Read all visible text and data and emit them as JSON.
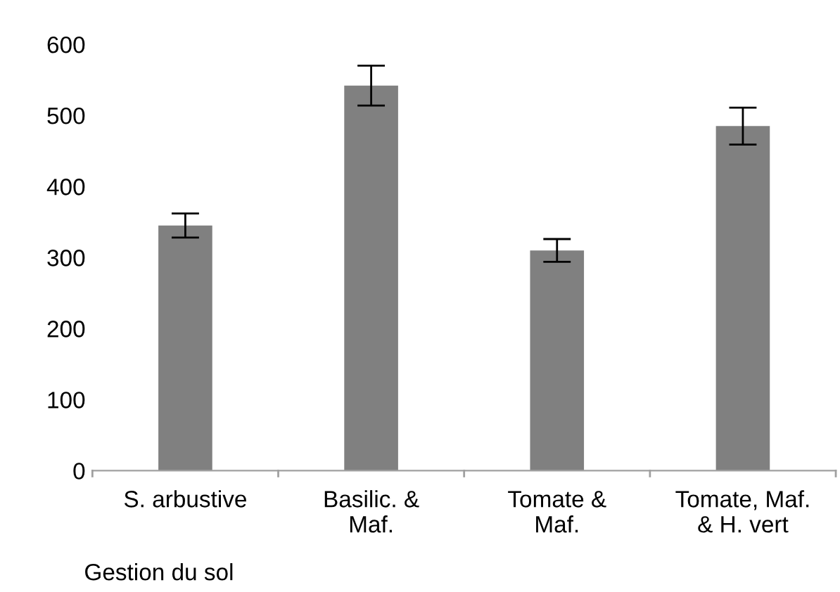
{
  "chart_data": {
    "type": "bar",
    "categories": [
      "S. arbustive",
      "Basilic. &\nMaf.",
      "Tomate &\nMaf.",
      "Tomate, Maf.\n& H. vert"
    ],
    "values": [
      345,
      542,
      310,
      485
    ],
    "errors": [
      17,
      28,
      16,
      26
    ],
    "color": "#808080",
    "xlabel": "Gestion du sol",
    "ylim": [
      0,
      600
    ],
    "yticks": [
      0,
      100,
      200,
      300,
      400,
      500,
      600
    ],
    "grid": false,
    "legend": false
  }
}
